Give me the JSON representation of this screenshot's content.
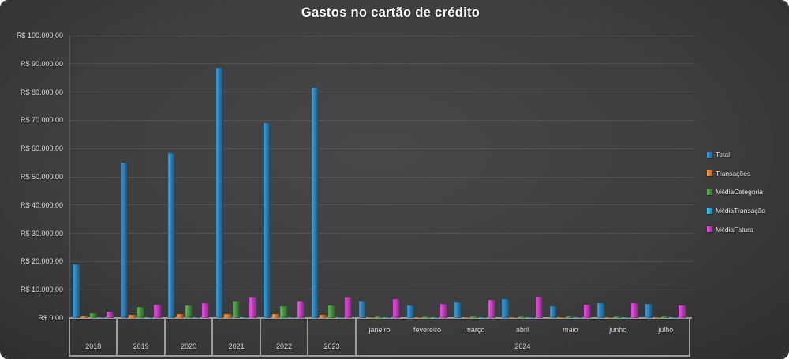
{
  "title": "Gastos no cartão de crédito",
  "colors": {
    "background": "#3e3e3e",
    "grid": "rgba(255,255,255,0.09)",
    "axis_line": "#9e9e9e",
    "label_text": "#d8d8d8",
    "title_text": "#ffffff"
  },
  "chart_data": {
    "type": "bar",
    "title": "Gastos no cartão de crédito",
    "grid": true,
    "legend_position": "right",
    "ylim": [
      0,
      100000
    ],
    "y_tick_step": 10000,
    "y_tick_labels": [
      "R$ 100.000,00",
      "R$ 90.000,00",
      "R$ 80.000,00",
      "R$ 70.000,00",
      "R$ 60.000,00",
      "R$ 50.000,00",
      "R$ 40.000,00",
      "R$ 30.000,00",
      "R$ 20.000,00",
      "R$ 10.000,00",
      "R$ 0,00"
    ],
    "categories": [
      "2018",
      "2019",
      "2020",
      "2021",
      "2022",
      "2023",
      "janeiro",
      "fevereiro",
      "março",
      "abril",
      "maio",
      "junho",
      "julho"
    ],
    "x_hierarchy": {
      "year_cells": [
        "2018",
        "2019",
        "2020",
        "2021",
        "2022",
        "2023"
      ],
      "month_cells": [
        "janeiro",
        "fevereiro",
        "março",
        "abril",
        "maio",
        "junho",
        "julho"
      ],
      "month_group_label": "2024"
    },
    "series": [
      {
        "name": "Total",
        "color": "#2e7cb0",
        "values": [
          19000,
          55000,
          58500,
          88500,
          69000,
          81500,
          6000,
          4400,
          5500,
          6700,
          4200,
          5300,
          5000
        ]
      },
      {
        "name": "Transações",
        "color": "#ed7d31",
        "values": [
          650,
          1100,
          1300,
          1500,
          1400,
          1200,
          150,
          150,
          150,
          150,
          150,
          150,
          150
        ]
      },
      {
        "name": "MédiaCategoria",
        "color": "#479141",
        "values": [
          1600,
          3900,
          4400,
          5900,
          4200,
          4600,
          600,
          500,
          550,
          600,
          450,
          500,
          500
        ]
      },
      {
        "name": "MédiaTransação",
        "color": "#29a8e0",
        "values": [
          300,
          300,
          300,
          350,
          300,
          350,
          350,
          350,
          350,
          350,
          300,
          350,
          350
        ]
      },
      {
        "name": "MédiaFatura",
        "color": "#bf3fba",
        "values": [
          2200,
          4800,
          5300,
          7400,
          5900,
          7300,
          6800,
          5000,
          6400,
          7500,
          4800,
          5300,
          4500
        ]
      }
    ]
  }
}
